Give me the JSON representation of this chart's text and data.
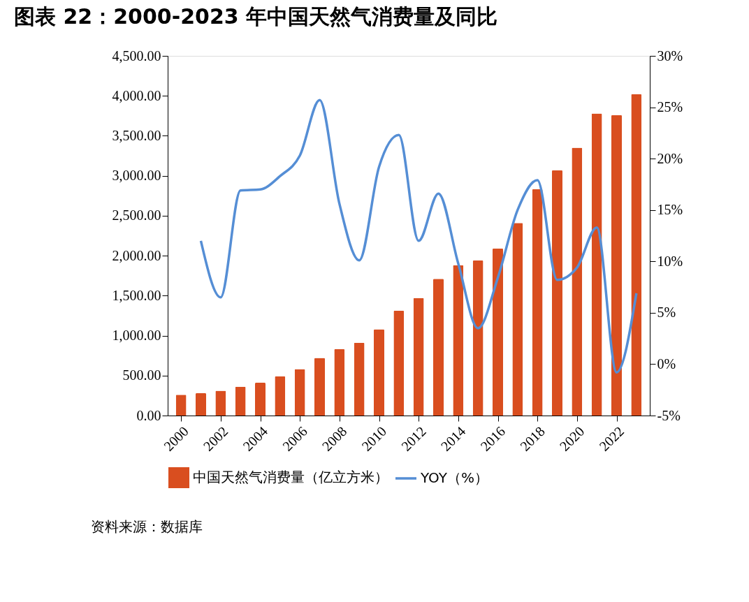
{
  "chart_data": {
    "type": "bar",
    "title": "图表 22：2000-2023 年中国天然气消费量及同比",
    "categories": [
      "2000",
      null,
      "2002",
      null,
      "2004",
      null,
      "2006",
      null,
      "2008",
      null,
      "2010",
      null,
      "2012",
      null,
      "2014",
      null,
      "2016",
      null,
      "2018",
      null,
      "2020",
      null,
      "2022",
      null
    ],
    "series": [
      {
        "name": "中国天然气消费量（亿立方米）",
        "color": "#d94e1f",
        "values": [
          260,
          280,
          310,
          360,
          410,
          490,
          580,
          720,
          830,
          910,
          1080,
          1310,
          1470,
          1710,
          1880,
          1940,
          2090,
          2410,
          2830,
          3070,
          3350,
          3780,
          3760,
          4020
        ]
      },
      {
        "name": "YOY（%）",
        "type": "line",
        "axis": "y2",
        "color": "#558ed5",
        "values": [
          null,
          12.0,
          6.5,
          16.9,
          17.0,
          18.3,
          20.3,
          25.7,
          15.6,
          10.1,
          19.2,
          22.3,
          12.0,
          16.6,
          9.8,
          3.5,
          8.4,
          15.0,
          17.9,
          8.2,
          9.4,
          13.3,
          -0.8,
          6.9
        ]
      }
    ],
    "ylim": [
      0,
      4500
    ],
    "yticks": [
      {
        "value": 0,
        "label": "0.00"
      },
      {
        "value": 500,
        "label": "500.00"
      },
      {
        "value": 1000,
        "label": "1,000.00"
      },
      {
        "value": 1500,
        "label": "1,500.00"
      },
      {
        "value": 2000,
        "label": "2,000.00"
      },
      {
        "value": 2500,
        "label": "2,500.00"
      },
      {
        "value": 3000,
        "label": "3,000.00"
      },
      {
        "value": 3500,
        "label": "3,500.00"
      },
      {
        "value": 4000,
        "label": "4,000.00"
      },
      {
        "value": 4500,
        "label": "4,500.00"
      }
    ],
    "y2lim": [
      -5,
      30
    ],
    "y2ticks": [
      {
        "value": -5,
        "label": "-5%"
      },
      {
        "value": 0,
        "label": "0%"
      },
      {
        "value": 5,
        "label": "5%"
      },
      {
        "value": 10,
        "label": "10%"
      },
      {
        "value": 15,
        "label": "15%"
      },
      {
        "value": 20,
        "label": "20%"
      },
      {
        "value": 25,
        "label": "25%"
      },
      {
        "value": 30,
        "label": "30%"
      }
    ],
    "grid": false,
    "legend": "bottom",
    "annotations": [
      "资料来源：数据库"
    ]
  }
}
